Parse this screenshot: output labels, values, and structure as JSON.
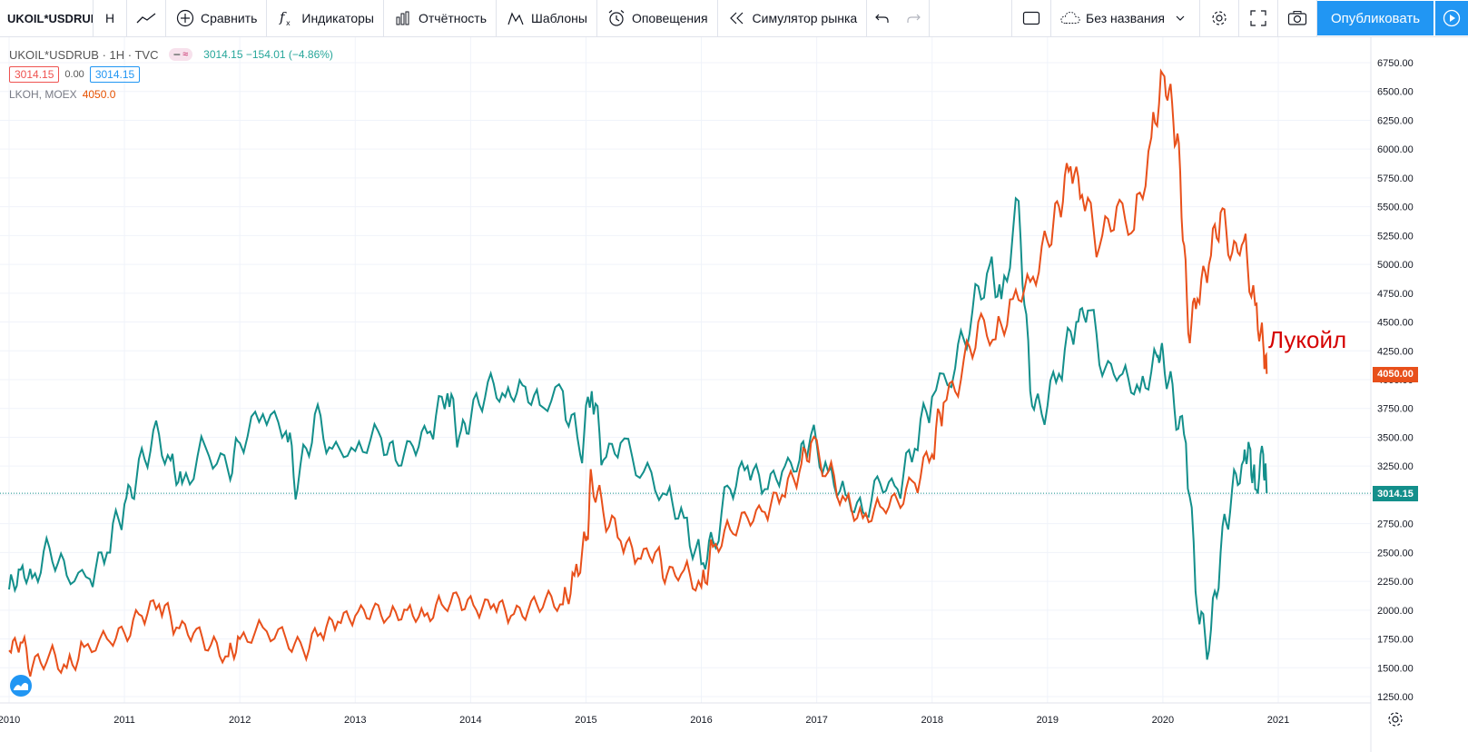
{
  "toolbar": {
    "symbol": "UKOIL*USDRUB",
    "interval": "H",
    "compare": "Сравнить",
    "indicators": "Индикаторы",
    "reports": "Отчётность",
    "templates": "Шаблоны",
    "alerts": "Оповещения",
    "replay": "Симулятор рынка",
    "layout_name": "Без названия",
    "publish": "Опубликовать"
  },
  "legend": {
    "main_title": "UKOIL*USDRUB · 1H · TVC",
    "main_quote": "3014.15 −154.01 (−4.86%)",
    "bid": "3014.15",
    "spread": "0.00",
    "ask": "3014.15",
    "secondary_title": "LKOH, MOEX",
    "secondary_value": "4050.0"
  },
  "annotation": "Лукойл",
  "price_tags": {
    "lkoh": "4050.00",
    "ukoil": "3014.15"
  },
  "colors": {
    "ukoil": "#138f8b",
    "lkoh": "#e8501b",
    "accent": "#2196f3"
  },
  "chart_data": {
    "type": "line",
    "x_ticks": [
      "2010",
      "2011",
      "2012",
      "2013",
      "2014",
      "2015",
      "2016",
      "2017",
      "2018",
      "2019",
      "2020",
      "2021"
    ],
    "y_ticks": [
      "1250.00",
      "1500.00",
      "1750.00",
      "2000.00",
      "2250.00",
      "2500.00",
      "2750.00",
      "3000.00",
      "3250.00",
      "3500.00",
      "3750.00",
      "4000.00",
      "4250.00",
      "4500.00",
      "4750.00",
      "5000.00",
      "5250.00",
      "5500.00",
      "5750.00",
      "6000.00",
      "6250.00",
      "6500.00",
      "6750.00"
    ],
    "ylim": [
      1150,
      6900
    ],
    "series": [
      {
        "name": "UKOIL*USDRUB",
        "points": [
          [
            2010.0,
            2180
          ],
          [
            2010.1,
            2350
          ],
          [
            2010.2,
            2280
          ],
          [
            2010.35,
            2540
          ],
          [
            2010.5,
            2300
          ],
          [
            2010.7,
            2270
          ],
          [
            2010.85,
            2500
          ],
          [
            2011.0,
            2920
          ],
          [
            2011.1,
            3100
          ],
          [
            2011.25,
            3560
          ],
          [
            2011.4,
            3300
          ],
          [
            2011.5,
            3100
          ],
          [
            2011.7,
            3420
          ],
          [
            2011.9,
            3200
          ],
          [
            2012.0,
            3450
          ],
          [
            2012.2,
            3700
          ],
          [
            2012.4,
            3550
          ],
          [
            2012.5,
            3050
          ],
          [
            2012.65,
            3700
          ],
          [
            2012.8,
            3400
          ],
          [
            2013.0,
            3380
          ],
          [
            2013.2,
            3550
          ],
          [
            2013.35,
            3300
          ],
          [
            2013.5,
            3420
          ],
          [
            2013.65,
            3550
          ],
          [
            2013.8,
            3880
          ],
          [
            2013.9,
            3500
          ],
          [
            2014.0,
            3650
          ],
          [
            2014.15,
            3980
          ],
          [
            2014.3,
            3850
          ],
          [
            2014.45,
            3950
          ],
          [
            2014.6,
            3780
          ],
          [
            2014.8,
            3900
          ],
          [
            2014.95,
            3350
          ],
          [
            2015.05,
            3900
          ],
          [
            2015.15,
            3300
          ],
          [
            2015.3,
            3450
          ],
          [
            2015.5,
            3200
          ],
          [
            2015.7,
            3000
          ],
          [
            2015.85,
            2800
          ],
          [
            2016.0,
            2400
          ],
          [
            2016.1,
            2600
          ],
          [
            2016.25,
            3050
          ],
          [
            2016.4,
            3250
          ],
          [
            2016.55,
            3050
          ],
          [
            2016.7,
            3200
          ],
          [
            2016.85,
            3300
          ],
          [
            2016.95,
            3520
          ],
          [
            2017.1,
            3200
          ],
          [
            2017.25,
            3000
          ],
          [
            2017.4,
            2850
          ],
          [
            2017.55,
            3100
          ],
          [
            2017.7,
            3050
          ],
          [
            2017.85,
            3400
          ],
          [
            2018.0,
            3850
          ],
          [
            2018.2,
            4100
          ],
          [
            2018.35,
            4600
          ],
          [
            2018.5,
            5000
          ],
          [
            2018.6,
            4700
          ],
          [
            2018.75,
            5550
          ],
          [
            2018.85,
            3900
          ],
          [
            2018.95,
            3700
          ],
          [
            2019.1,
            4050
          ],
          [
            2019.25,
            4500
          ],
          [
            2019.35,
            4600
          ],
          [
            2019.5,
            4100
          ],
          [
            2019.65,
            4050
          ],
          [
            2019.8,
            3900
          ],
          [
            2019.95,
            4200
          ],
          [
            2020.0,
            4250
          ],
          [
            2020.1,
            3750
          ],
          [
            2020.2,
            3450
          ],
          [
            2020.3,
            2000
          ],
          [
            2020.4,
            1650
          ],
          [
            2020.5,
            2500
          ],
          [
            2020.6,
            3050
          ],
          [
            2020.7,
            3300
          ],
          [
            2020.75,
            3420
          ],
          [
            2020.8,
            3050
          ],
          [
            2020.87,
            3350
          ],
          [
            2020.9,
            3014
          ]
        ]
      },
      {
        "name": "LKOH, MOEX",
        "points": [
          [
            2010.0,
            1650
          ],
          [
            2010.1,
            1720
          ],
          [
            2010.2,
            1500
          ],
          [
            2010.35,
            1620
          ],
          [
            2010.5,
            1500
          ],
          [
            2010.65,
            1680
          ],
          [
            2010.85,
            1750
          ],
          [
            2011.0,
            1800
          ],
          [
            2011.15,
            1950
          ],
          [
            2011.3,
            2050
          ],
          [
            2011.45,
            1850
          ],
          [
            2011.6,
            1800
          ],
          [
            2011.75,
            1700
          ],
          [
            2011.9,
            1600
          ],
          [
            2012.0,
            1750
          ],
          [
            2012.2,
            1850
          ],
          [
            2012.4,
            1750
          ],
          [
            2012.55,
            1650
          ],
          [
            2012.7,
            1800
          ],
          [
            2012.85,
            1900
          ],
          [
            2013.0,
            1950
          ],
          [
            2013.15,
            2000
          ],
          [
            2013.3,
            1950
          ],
          [
            2013.45,
            2000
          ],
          [
            2013.6,
            1950
          ],
          [
            2013.75,
            2050
          ],
          [
            2013.9,
            2100
          ],
          [
            2014.05,
            2000
          ],
          [
            2014.2,
            2050
          ],
          [
            2014.35,
            1950
          ],
          [
            2014.5,
            2000
          ],
          [
            2014.65,
            2100
          ],
          [
            2014.8,
            2050
          ],
          [
            2014.9,
            2300
          ],
          [
            2015.0,
            2600
          ],
          [
            2015.05,
            3150
          ],
          [
            2015.15,
            2850
          ],
          [
            2015.3,
            2600
          ],
          [
            2015.45,
            2450
          ],
          [
            2015.6,
            2500
          ],
          [
            2015.7,
            2300
          ],
          [
            2015.85,
            2350
          ],
          [
            2016.0,
            2200
          ],
          [
            2016.1,
            2550
          ],
          [
            2016.25,
            2700
          ],
          [
            2016.4,
            2800
          ],
          [
            2016.55,
            2850
          ],
          [
            2016.7,
            3000
          ],
          [
            2016.85,
            3200
          ],
          [
            2016.95,
            3450
          ],
          [
            2017.1,
            3200
          ],
          [
            2017.25,
            2950
          ],
          [
            2017.4,
            2800
          ],
          [
            2017.55,
            2900
          ],
          [
            2017.7,
            2950
          ],
          [
            2017.85,
            3100
          ],
          [
            2018.0,
            3350
          ],
          [
            2018.1,
            3800
          ],
          [
            2018.25,
            4000
          ],
          [
            2018.4,
            4500
          ],
          [
            2018.55,
            4350
          ],
          [
            2018.7,
            4700
          ],
          [
            2018.85,
            4850
          ],
          [
            2019.0,
            5200
          ],
          [
            2019.1,
            5500
          ],
          [
            2019.2,
            5850
          ],
          [
            2019.3,
            5600
          ],
          [
            2019.45,
            5150
          ],
          [
            2019.6,
            5500
          ],
          [
            2019.75,
            5300
          ],
          [
            2019.9,
            6100
          ],
          [
            2020.0,
            6650
          ],
          [
            2020.08,
            6400
          ],
          [
            2020.15,
            5800
          ],
          [
            2020.22,
            4400
          ],
          [
            2020.3,
            4700
          ],
          [
            2020.4,
            5000
          ],
          [
            2020.5,
            5450
          ],
          [
            2020.6,
            5100
          ],
          [
            2020.7,
            5200
          ],
          [
            2020.8,
            4650
          ],
          [
            2020.87,
            4300
          ],
          [
            2020.9,
            4050
          ]
        ]
      }
    ]
  }
}
